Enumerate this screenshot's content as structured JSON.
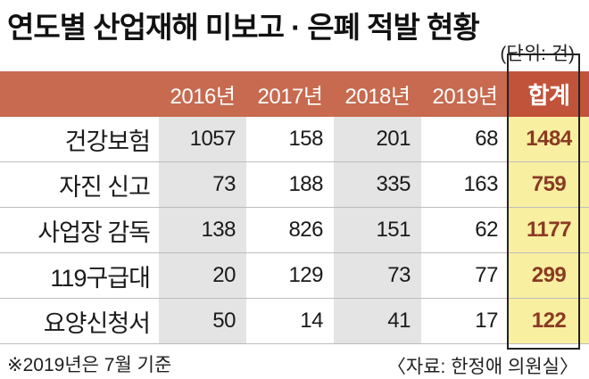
{
  "title": "연도별 산업재해 미보고 · 은폐 적발 현황",
  "unit": "(단위: 건)",
  "chart_data": {
    "type": "table",
    "columns": [
      "",
      "2016년",
      "2017년",
      "2018년",
      "2019년",
      "합계"
    ],
    "rows": [
      {
        "label": "건강보험",
        "values": [
          "1057",
          "158",
          "201",
          "68"
        ],
        "total": "1484"
      },
      {
        "label": "자진 신고",
        "values": [
          "73",
          "188",
          "335",
          "163"
        ],
        "total": "759"
      },
      {
        "label": "사업장 감독",
        "values": [
          "138",
          "826",
          "151",
          "62"
        ],
        "total": "1177"
      },
      {
        "label": "119구급대",
        "values": [
          "20",
          "129",
          "73",
          "77"
        ],
        "total": "299"
      },
      {
        "label": "요양신청서",
        "values": [
          "50",
          "14",
          "41",
          "17"
        ],
        "total": "122"
      }
    ]
  },
  "colors": {
    "header_bg": "#c76a4f",
    "total_header_bg": "#c0533a",
    "total_cell_bg": "#f8efa1",
    "total_text": "#8a3a22",
    "shaded_column_bg": "#e4e4e4"
  },
  "footnote": "※2019년은 7월 기준",
  "source": "〈자료: 한정애 의원실〉"
}
